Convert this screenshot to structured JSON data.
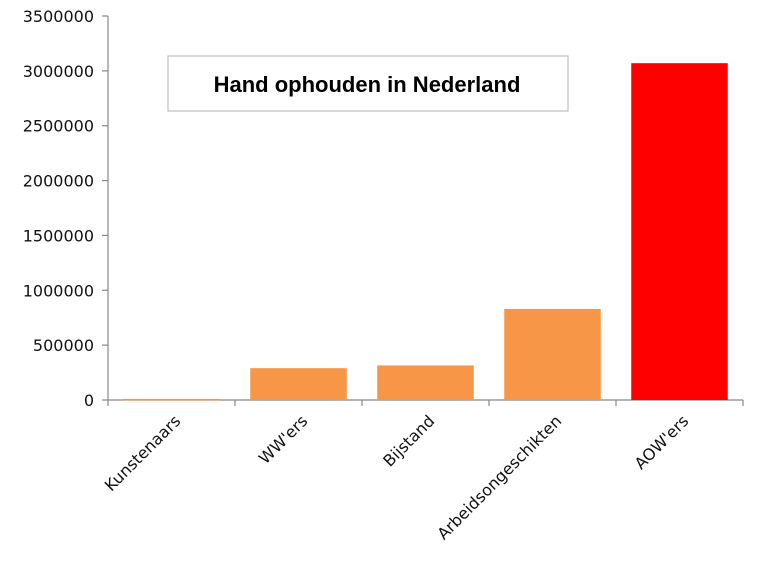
{
  "chart_data": {
    "type": "bar",
    "title": "Hand ophouden in Nederland",
    "xlabel": "",
    "ylabel": "",
    "categories": [
      "Kunstenaars",
      "WW'ers",
      "Bijstand",
      "Arbeidsongeschikten",
      "AOW'ers"
    ],
    "values": [
      10000,
      290000,
      315000,
      830000,
      3070000
    ],
    "ylim": [
      0,
      3500000
    ],
    "yticks": [
      0,
      500000,
      1000000,
      1500000,
      2000000,
      2500000,
      3000000,
      3500000
    ],
    "ytick_labels": [
      "0",
      "500000",
      "1000000",
      "1500000",
      "2000000",
      "2500000",
      "3000000",
      "3500000"
    ],
    "grid": false,
    "legend": "none",
    "colors": {
      "default_bar": "#f79646",
      "highlight_bar": "#ff0000",
      "axis": "#888888"
    },
    "highlight_category": "AOW'ers"
  }
}
